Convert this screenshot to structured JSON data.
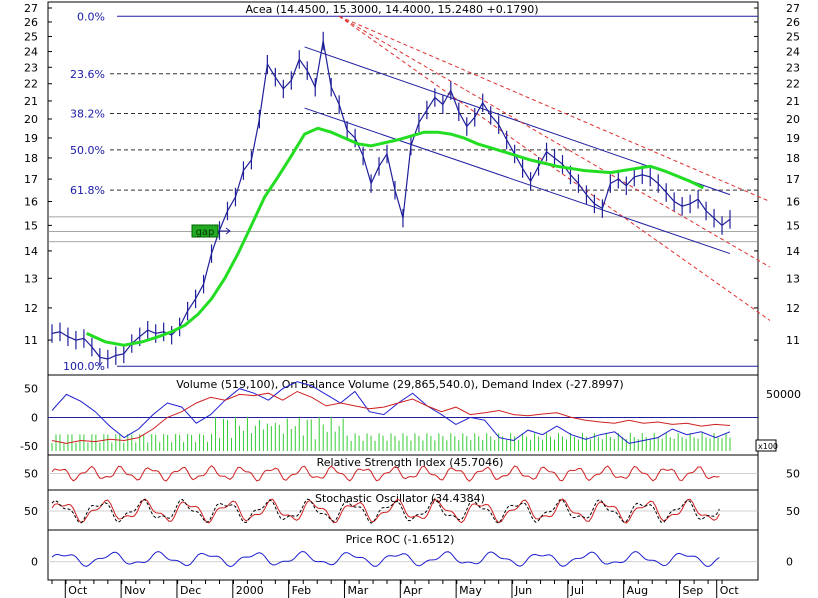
{
  "colors": {
    "background": "#ffffff",
    "frame": "#000000",
    "price": "#1f1f9a",
    "moving_average": "#22dd22",
    "fib_line": "#333333",
    "regression_channel": "#1f1fa0",
    "fan_lines": "#e03030",
    "volume_bars": "#33cc33",
    "obv": "#1f1fd0",
    "demand_index": "#d02020",
    "rsi": "#d02020",
    "stochastic_k": "#d02020",
    "stochastic_d": "#000000",
    "roc": "#1f1fd0",
    "gap_box": "#22aa22",
    "grid": "#c0c0c0"
  },
  "chart_data": [
    {
      "type": "line",
      "panel": "price",
      "title": "Acea (14.4500, 15.3000, 14.4000, 15.2480 +0.1790)",
      "y_ticks": [
        11,
        12,
        13,
        14,
        15,
        16,
        17,
        18,
        19,
        20,
        21,
        22,
        23,
        24,
        25,
        26,
        27
      ],
      "ylim": [
        10.2,
        27
      ],
      "y_scale": "log",
      "x_ticks": [
        "Oct",
        "Nov",
        "Dec",
        "2000",
        "Feb",
        "Mar",
        "Apr",
        "May",
        "Jun",
        "Jul",
        "Aug",
        "Sep",
        "Oct"
      ],
      "series": [
        {
          "x": [
            0,
            3,
            6,
            9,
            12,
            15,
            18,
            21,
            24,
            27,
            30,
            33,
            36,
            39,
            42,
            45,
            48,
            51,
            54,
            57,
            60,
            63,
            66,
            69,
            72,
            75,
            78,
            81,
            84,
            87,
            90,
            93,
            96,
            99,
            102,
            105,
            108,
            111,
            114,
            117,
            120,
            123,
            126,
            129,
            132,
            135,
            138,
            141,
            144,
            147,
            150,
            153,
            156,
            159,
            162,
            165,
            168,
            171,
            174,
            177,
            180,
            183,
            186,
            189,
            192,
            195,
            198,
            201,
            204,
            207,
            210,
            213,
            216,
            219,
            222,
            225,
            228,
            231,
            234,
            237,
            240,
            243,
            246,
            249,
            252,
            255
          ],
          "values": [
            11.2,
            11.25,
            11.1,
            11.0,
            11.05,
            10.8,
            10.5,
            10.45,
            10.55,
            10.6,
            10.9,
            11.1,
            11.3,
            11.2,
            11.25,
            11.15,
            11.4,
            11.9,
            12.3,
            12.8,
            13.9,
            14.8,
            15.6,
            16.2,
            17.4,
            17.9,
            20.0,
            23.2,
            22.4,
            21.7,
            22.2,
            23.5,
            22.8,
            21.8,
            24.7,
            21.8,
            20.8,
            19.4,
            19.0,
            18.1,
            16.8,
            17.6,
            18.2,
            16.5,
            15.3,
            18.6,
            19.8,
            20.5,
            21.2,
            20.8,
            21.6,
            20.4,
            19.6,
            20.1,
            20.9,
            20.2,
            19.7,
            18.9,
            18.2,
            17.5,
            16.9,
            17.6,
            18.3,
            18.0,
            17.7,
            17.2,
            16.8,
            16.3,
            15.9,
            15.7,
            16.8,
            17.0,
            16.7,
            17.1,
            17.2,
            17.1,
            16.8,
            16.4,
            16.0,
            15.8,
            15.9,
            16.1,
            15.6,
            15.3,
            15.0,
            15.25
          ]
        },
        {
          "x": [
            13,
            20,
            27,
            34,
            40,
            45,
            50,
            55,
            60,
            65,
            70,
            75,
            80,
            85,
            90,
            95,
            100,
            105,
            110,
            115,
            120,
            130,
            140,
            145,
            150,
            155,
            160,
            170,
            180,
            190,
            200,
            210,
            220,
            225,
            230,
            240,
            245
          ],
          "values": [
            11.2,
            10.95,
            10.85,
            10.95,
            11.1,
            11.25,
            11.45,
            11.8,
            12.3,
            13.0,
            13.9,
            15.0,
            16.2,
            17.1,
            18.1,
            19.2,
            19.5,
            19.3,
            19.0,
            18.7,
            18.6,
            18.9,
            19.3,
            19.3,
            19.2,
            19.0,
            18.7,
            18.3,
            17.9,
            17.6,
            17.4,
            17.3,
            17.5,
            17.6,
            17.4,
            16.9,
            16.6
          ]
        }
      ],
      "fib_levels": [
        {
          "label": "0.0%",
          "value": 26.4
        },
        {
          "label": "23.6%",
          "value": 22.6
        },
        {
          "label": "38.2%",
          "value": 20.3
        },
        {
          "label": "50.0%",
          "value": 18.4
        },
        {
          "label": "61.8%",
          "value": 16.5
        },
        {
          "label": "100.0%",
          "value": 10.25
        }
      ],
      "annotations": [
        "gap"
      ]
    },
    {
      "type": "bar",
      "panel": "volume",
      "title": "Volume (519,100), On Balance Volume (29,865,540.0), Demand Index (-27.8997)",
      "y_ticks": [
        50,
        0,
        -50
      ],
      "ylim": [
        -60,
        65
      ],
      "right_ticks": [
        "50000"
      ],
      "multiplier_label": "x100",
      "obv": [
        12,
        40,
        28,
        10,
        -15,
        -35,
        -20,
        5,
        25,
        18,
        -10,
        5,
        30,
        50,
        42,
        30,
        50,
        62,
        55,
        40,
        25,
        45,
        10,
        5,
        25,
        42,
        20,
        5,
        -12,
        0,
        -5,
        -35,
        -40,
        -22,
        -30,
        -15,
        -30,
        -38,
        -30,
        -25,
        -45,
        -40,
        -35,
        -20,
        -30,
        -25,
        -35,
        -25
      ],
      "demand_index": [
        -40,
        -45,
        -40,
        -42,
        -38,
        -40,
        -35,
        -20,
        0,
        10,
        25,
        35,
        30,
        40,
        38,
        42,
        30,
        45,
        35,
        20,
        25,
        20,
        15,
        18,
        25,
        32,
        20,
        10,
        18,
        5,
        8,
        12,
        5,
        3,
        6,
        8,
        0,
        -5,
        -8,
        -10,
        -5,
        -10,
        -8,
        -12,
        -10,
        -15,
        -12,
        -14
      ]
    },
    {
      "type": "line",
      "panel": "rsi",
      "title": "Relative Strength Index (45.7046)",
      "y_ticks": [
        50
      ],
      "ylim": [
        15,
        85
      ],
      "last_value": 45.7046
    },
    {
      "type": "line",
      "panel": "stochastic",
      "title": "Stochastic Oscillator (34.4384)",
      "y_ticks": [
        50
      ],
      "ylim": [
        0,
        100
      ],
      "last_value": 34.4384
    },
    {
      "type": "line",
      "panel": "roc",
      "title": "Price ROC (-1.6512)",
      "y_ticks": [
        0
      ],
      "ylim": [
        -15,
        20
      ],
      "last_value": -1.6512
    }
  ]
}
